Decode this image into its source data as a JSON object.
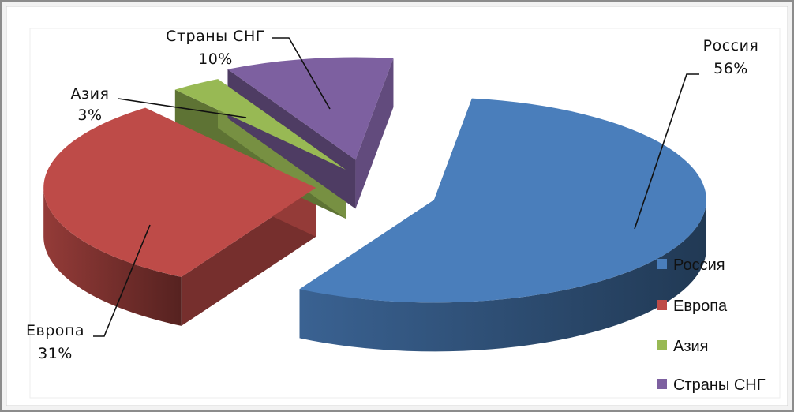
{
  "chart_data": {
    "type": "pie",
    "style": "3d-exploded",
    "title": "",
    "categories": [
      "Россия",
      "Европа",
      "Азия",
      "Страны СНГ"
    ],
    "values": [
      56,
      31,
      3,
      10
    ],
    "value_labels": [
      "56%",
      "31%",
      "3%",
      "10%"
    ],
    "colors": [
      "#4a7ebb",
      "#be4b48",
      "#98b954",
      "#7d60a0"
    ],
    "legend": {
      "position": "right-bottom",
      "entries": [
        "Россия",
        "Европа",
        "Азия",
        "Страны СНГ"
      ]
    }
  }
}
